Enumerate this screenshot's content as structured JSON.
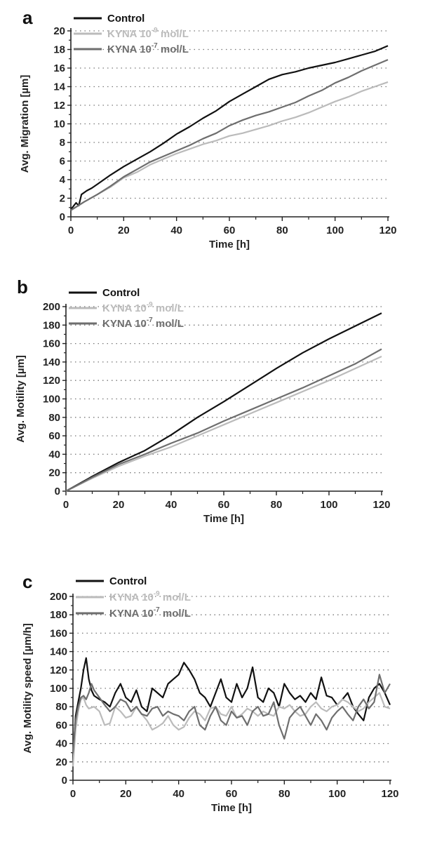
{
  "chart_data": [
    {
      "panel_letter": "a",
      "type": "line",
      "xlabel": "Time [h]",
      "ylabel": "Avg. Migration [µm]",
      "xlim": [
        0,
        120
      ],
      "ylim": [
        0,
        20
      ],
      "xticks": [
        "0",
        "20",
        "40",
        "60",
        "80",
        "100",
        "120"
      ],
      "yticks": [
        "0",
        "2",
        "4",
        "6",
        "8",
        "10",
        "12",
        "14",
        "16",
        "18",
        "20"
      ],
      "grid": "horizontal-dotted",
      "legend_position": "top-left",
      "series": [
        {
          "name_main": "Control",
          "name_sup": "",
          "name_tail": "",
          "color": "#111111",
          "x": [
            0,
            2,
            3,
            4,
            6,
            8,
            10,
            15,
            20,
            25,
            30,
            35,
            40,
            45,
            50,
            55,
            60,
            65,
            70,
            75,
            80,
            85,
            90,
            95,
            100,
            105,
            110,
            115,
            120
          ],
          "y": [
            0.8,
            1.5,
            1.2,
            2.4,
            2.8,
            3.1,
            3.5,
            4.5,
            5.4,
            6.2,
            7.0,
            7.9,
            8.9,
            9.7,
            10.6,
            11.4,
            12.4,
            13.2,
            14.0,
            14.8,
            15.3,
            15.6,
            16.0,
            16.3,
            16.6,
            17.0,
            17.4,
            17.8,
            18.4
          ]
        },
        {
          "name_main": "KYNA 10",
          "name_sup": "-9",
          "name_tail": " mol/L",
          "color": "#bbbbbb",
          "x": [
            0,
            5,
            10,
            15,
            20,
            25,
            30,
            35,
            40,
            45,
            50,
            55,
            60,
            65,
            70,
            75,
            80,
            85,
            90,
            95,
            100,
            105,
            110,
            115,
            120
          ],
          "y": [
            0.7,
            1.6,
            2.4,
            3.2,
            4.2,
            4.8,
            5.6,
            6.2,
            6.8,
            7.3,
            7.8,
            8.2,
            8.7,
            9.0,
            9.4,
            9.8,
            10.3,
            10.7,
            11.2,
            11.8,
            12.4,
            12.9,
            13.5,
            14.0,
            14.5
          ]
        },
        {
          "name_main": "KYNA 10",
          "name_sup": "-7",
          "name_tail": " mol/L",
          "color": "#6e6e6e",
          "x": [
            0,
            5,
            10,
            15,
            20,
            25,
            30,
            35,
            40,
            45,
            50,
            55,
            60,
            65,
            70,
            75,
            80,
            85,
            90,
            95,
            100,
            105,
            110,
            115,
            120
          ],
          "y": [
            0.7,
            1.6,
            2.4,
            3.3,
            4.3,
            5.1,
            5.9,
            6.5,
            7.1,
            7.7,
            8.4,
            9.0,
            9.8,
            10.4,
            10.9,
            11.3,
            11.8,
            12.3,
            13.0,
            13.6,
            14.4,
            15.0,
            15.7,
            16.3,
            16.9
          ]
        }
      ]
    },
    {
      "panel_letter": "b",
      "type": "line",
      "xlabel": "Time [h]",
      "ylabel": "Avg. Motility [µm]",
      "xlim": [
        0,
        120
      ],
      "ylim": [
        0,
        200
      ],
      "xticks": [
        "0",
        "20",
        "40",
        "60",
        "80",
        "100",
        "120"
      ],
      "yticks": [
        "0",
        "20",
        "40",
        "60",
        "80",
        "100",
        "120",
        "140",
        "160",
        "180",
        "200"
      ],
      "grid": "horizontal-dotted",
      "legend_position": "top-left",
      "series": [
        {
          "name_main": "Control",
          "name_sup": "",
          "name_tail": "",
          "color": "#111111",
          "x": [
            0,
            10,
            20,
            30,
            40,
            50,
            60,
            70,
            80,
            90,
            100,
            110,
            120
          ],
          "y": [
            0,
            16,
            31,
            44,
            61,
            80,
            97,
            115,
            133,
            150,
            165,
            179,
            193
          ]
        },
        {
          "name_main": "KYNA 10",
          "name_sup": "-9",
          "name_tail": " mol/L",
          "color": "#bbbbbb",
          "x": [
            0,
            10,
            20,
            30,
            40,
            50,
            60,
            70,
            80,
            90,
            100,
            110,
            120
          ],
          "y": [
            0,
            14,
            27,
            38,
            48,
            60,
            72,
            84,
            96,
            108,
            120,
            133,
            146
          ]
        },
        {
          "name_main": "KYNA 10",
          "name_sup": "-7",
          "name_tail": " mol/L",
          "color": "#6e6e6e",
          "x": [
            0,
            10,
            20,
            30,
            40,
            50,
            60,
            70,
            80,
            90,
            100,
            110,
            120
          ],
          "y": [
            0,
            15,
            29,
            40,
            52,
            63,
            76,
            88,
            100,
            112,
            125,
            138,
            154
          ]
        }
      ]
    },
    {
      "panel_letter": "c",
      "type": "line",
      "xlabel": "Time [h]",
      "ylabel": "Avg. Motility speed [µm/h]",
      "xlim": [
        0,
        120
      ],
      "ylim": [
        0,
        200
      ],
      "xticks": [
        "0",
        "20",
        "40",
        "60",
        "80",
        "100",
        "120"
      ],
      "yticks": [
        "0",
        "20",
        "40",
        "60",
        "80",
        "100",
        "120",
        "140",
        "160",
        "180",
        "200"
      ],
      "grid": "horizontal-dotted",
      "legend_position": "top-left",
      "series": [
        {
          "name_main": "Control",
          "name_sup": "",
          "name_tail": "",
          "color": "#111111",
          "x": [
            0,
            1,
            2,
            3,
            4,
            5,
            6,
            7,
            8,
            10,
            12,
            14,
            16,
            18,
            20,
            22,
            24,
            26,
            28,
            30,
            32,
            34,
            36,
            38,
            40,
            42,
            44,
            46,
            48,
            50,
            52,
            54,
            56,
            58,
            60,
            62,
            64,
            66,
            68,
            70,
            72,
            74,
            76,
            78,
            80,
            82,
            84,
            86,
            88,
            90,
            92,
            94,
            96,
            98,
            100,
            102,
            104,
            106,
            108,
            110,
            112,
            114,
            116,
            118,
            120
          ],
          "y": [
            20,
            70,
            85,
            100,
            120,
            133,
            110,
            98,
            92,
            88,
            85,
            80,
            95,
            105,
            90,
            85,
            98,
            80,
            75,
            100,
            95,
            90,
            105,
            110,
            115,
            128,
            120,
            110,
            95,
            90,
            80,
            95,
            110,
            90,
            85,
            105,
            90,
            100,
            123,
            90,
            85,
            100,
            95,
            80,
            105,
            95,
            88,
            92,
            85,
            95,
            88,
            112,
            92,
            90,
            82,
            88,
            95,
            80,
            72,
            65,
            90,
            100,
            105,
            95,
            82
          ]
        },
        {
          "name_main": "KYNA 10",
          "name_sup": "-9",
          "name_tail": " mol/L",
          "color": "#bbbbbb",
          "x": [
            0,
            1,
            2,
            3,
            4,
            5,
            6,
            8,
            10,
            12,
            14,
            16,
            18,
            20,
            22,
            24,
            26,
            28,
            30,
            32,
            34,
            36,
            38,
            40,
            42,
            44,
            46,
            48,
            50,
            52,
            54,
            56,
            58,
            60,
            62,
            64,
            66,
            68,
            70,
            72,
            74,
            76,
            78,
            80,
            82,
            84,
            86,
            88,
            90,
            92,
            94,
            96,
            98,
            100,
            102,
            104,
            106,
            108,
            110,
            112,
            114,
            116,
            118,
            120
          ],
          "y": [
            15,
            55,
            75,
            88,
            90,
            82,
            78,
            80,
            75,
            60,
            62,
            80,
            75,
            68,
            70,
            80,
            72,
            65,
            55,
            58,
            62,
            70,
            60,
            55,
            58,
            68,
            75,
            72,
            65,
            78,
            80,
            72,
            70,
            80,
            68,
            72,
            78,
            75,
            70,
            75,
            72,
            70,
            80,
            78,
            82,
            75,
            70,
            72,
            80,
            85,
            78,
            75,
            80,
            82,
            88,
            85,
            80,
            75,
            78,
            85,
            90,
            95,
            80,
            78
          ]
        },
        {
          "name_main": "KYNA 10",
          "name_sup": "-7",
          "name_tail": " mol/L",
          "color": "#6e6e6e",
          "x": [
            0,
            1,
            2,
            3,
            4,
            5,
            6,
            7,
            8,
            10,
            12,
            14,
            16,
            18,
            20,
            22,
            24,
            26,
            28,
            30,
            32,
            34,
            36,
            38,
            40,
            42,
            44,
            46,
            48,
            50,
            52,
            54,
            56,
            58,
            60,
            62,
            64,
            66,
            68,
            70,
            72,
            74,
            76,
            78,
            80,
            82,
            84,
            86,
            88,
            90,
            92,
            94,
            96,
            98,
            100,
            102,
            104,
            106,
            108,
            110,
            112,
            114,
            116,
            118,
            120
          ],
          "y": [
            30,
            65,
            80,
            90,
            92,
            88,
            95,
            105,
            98,
            90,
            82,
            75,
            80,
            88,
            85,
            75,
            80,
            72,
            70,
            78,
            80,
            70,
            75,
            72,
            70,
            65,
            75,
            80,
            60,
            55,
            70,
            80,
            65,
            60,
            75,
            68,
            70,
            60,
            75,
            80,
            70,
            72,
            85,
            60,
            45,
            68,
            75,
            80,
            70,
            60,
            72,
            65,
            55,
            68,
            75,
            80,
            72,
            65,
            80,
            88,
            78,
            85,
            115,
            95,
            105
          ]
        }
      ]
    }
  ]
}
